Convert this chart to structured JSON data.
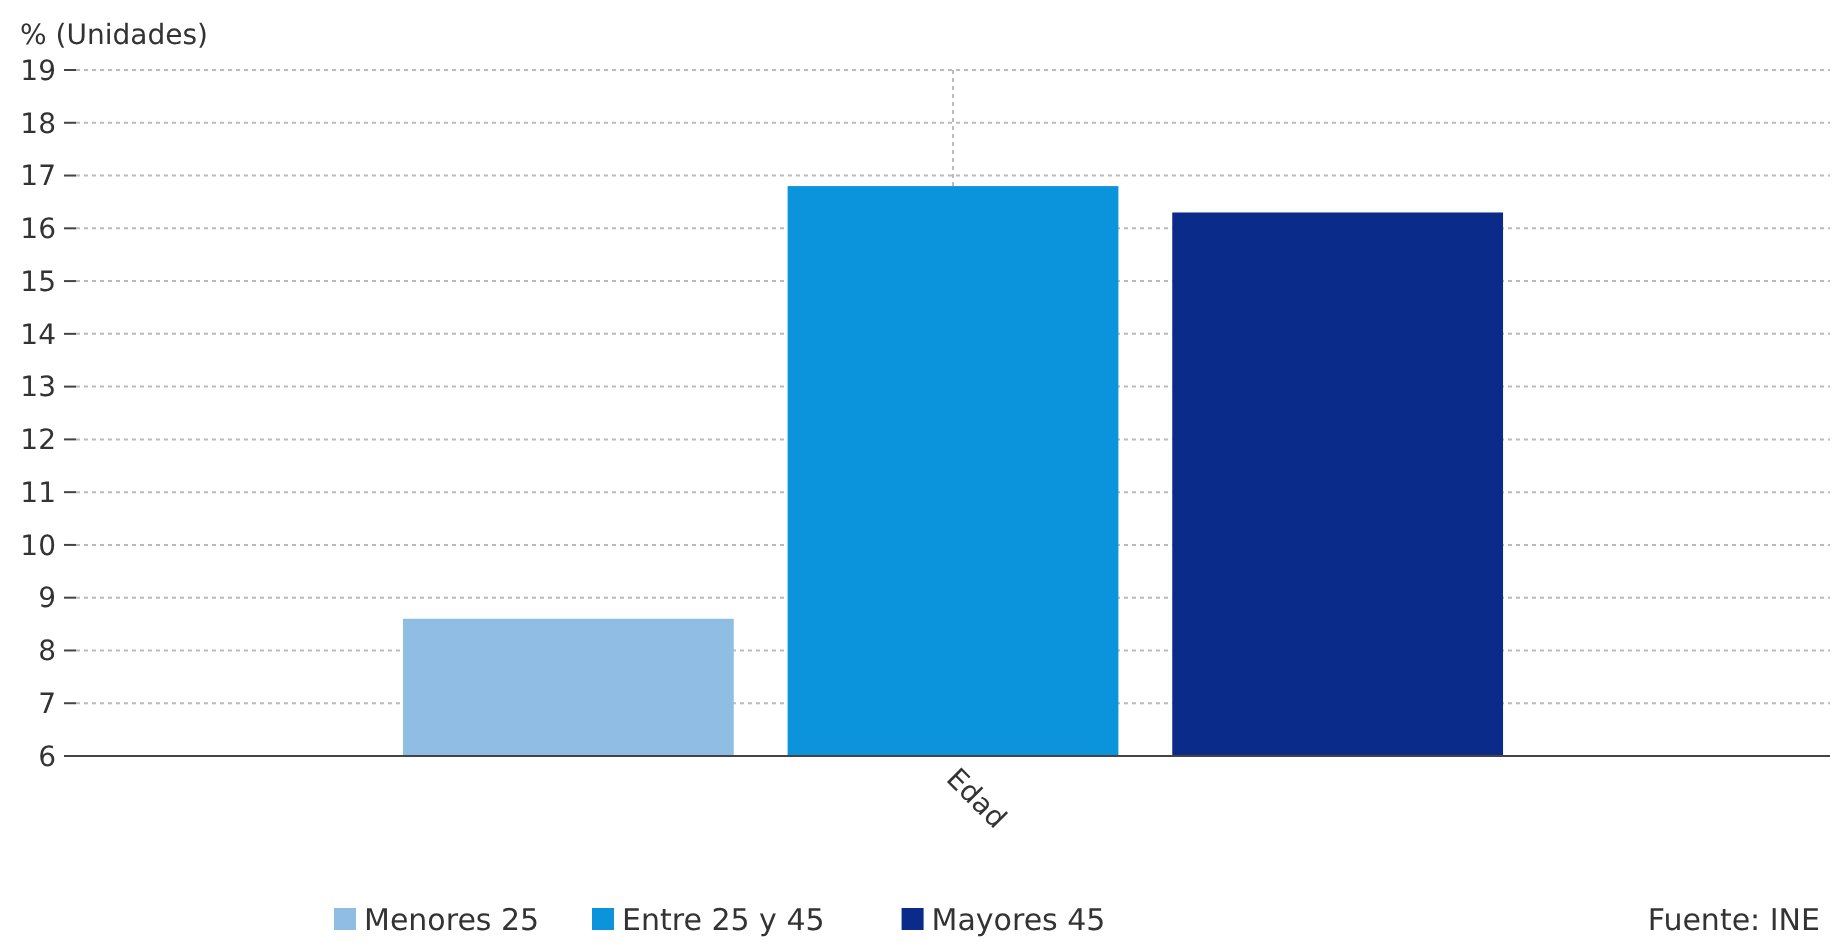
{
  "chart_data": {
    "type": "bar",
    "ylabel": "% (Unidades)",
    "categories": [
      "Edad"
    ],
    "series": [
      {
        "name": "Menores 25",
        "color": "#8fbde3",
        "values": [
          8.6
        ]
      },
      {
        "name": "Entre 25 y 45",
        "color": "#0b93db",
        "values": [
          16.8
        ]
      },
      {
        "name": "Mayores 45",
        "color": "#0a2b8a",
        "values": [
          16.3
        ]
      }
    ],
    "ylim": [
      6,
      19
    ],
    "yticks": [
      6,
      7,
      8,
      9,
      10,
      11,
      12,
      13,
      14,
      15,
      16,
      17,
      18,
      19
    ],
    "grid": true,
    "legend": "bottom",
    "annotations": [
      "Fuente: INE"
    ]
  }
}
